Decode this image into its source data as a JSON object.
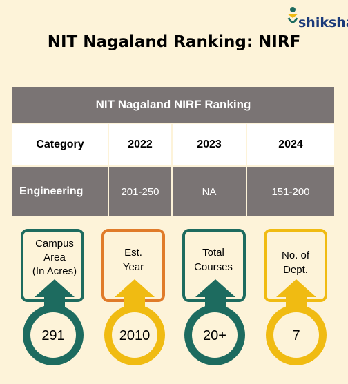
{
  "brand": {
    "name": "shiksha"
  },
  "title": "NIT Nagaland Ranking: NIRF",
  "table": {
    "header": "NIT Nagaland  NIRF Ranking",
    "columns": [
      "Category",
      "2022",
      "2023",
      "2024"
    ],
    "rows": [
      {
        "category": "Engineering",
        "y2022": "201-250",
        "y2023": "NA",
        "y2024": "151-200"
      }
    ]
  },
  "stats": [
    {
      "label_lines": [
        "Campus",
        "Area",
        "(In Acres)"
      ],
      "value": "291",
      "color": "#1d6b5f"
    },
    {
      "label_lines": [
        "Est.",
        "Year"
      ],
      "value": "2010",
      "color": "#f0bb12"
    },
    {
      "label_lines": [
        "Total",
        "Courses"
      ],
      "value": "20+",
      "color": "#1d6b5f"
    },
    {
      "label_lines": [
        "No. of",
        "Dept."
      ],
      "value": "7",
      "color": "#f0bb12"
    }
  ],
  "colors": {
    "background": "#fdf3d9",
    "table_gray": "#7a7474",
    "teal": "#1d6b5f",
    "yellow": "#f0bb12",
    "orange": "#e07b2a"
  }
}
